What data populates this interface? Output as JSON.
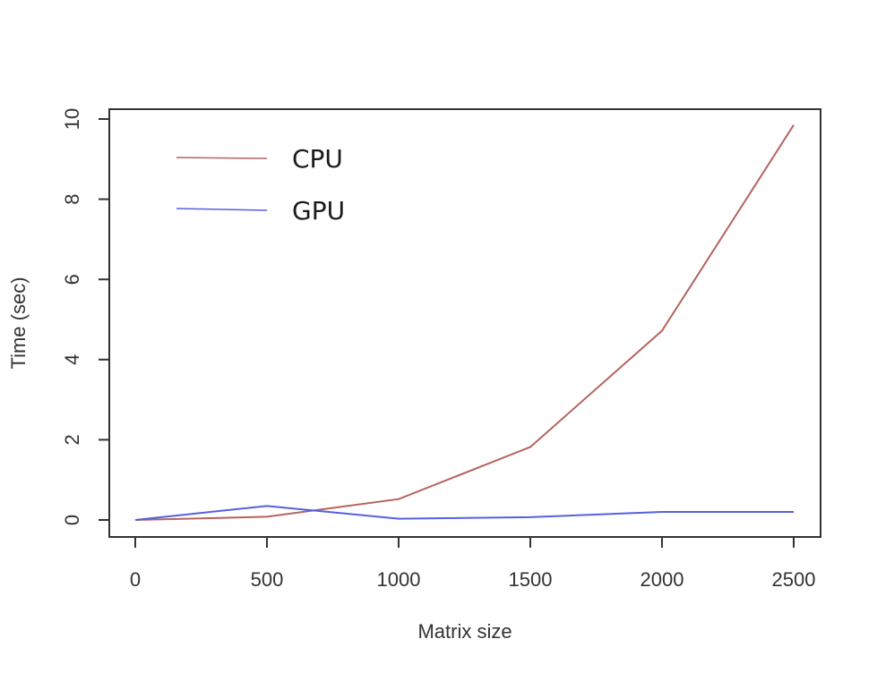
{
  "chart_data": {
    "type": "line",
    "title": "",
    "xlabel": "Matrix size",
    "ylabel": "Time (sec)",
    "xlim": [
      0,
      2500
    ],
    "ylim": [
      0,
      10
    ],
    "x_ticks": [
      "0",
      "500",
      "1000",
      "1500",
      "2000",
      "2500"
    ],
    "y_ticks": [
      "0",
      "2",
      "4",
      "6",
      "8",
      "10"
    ],
    "grid": false,
    "legend_position": "top-left",
    "x": [
      0,
      500,
      1000,
      1500,
      2000,
      2500
    ],
    "series": [
      {
        "name": "CPU",
        "color": "#b5645f",
        "values": [
          0.0,
          0.08,
          0.52,
          1.82,
          4.72,
          9.85
        ]
      },
      {
        "name": "GPU",
        "color": "#5560e0",
        "values": [
          0.0,
          0.35,
          0.03,
          0.07,
          0.2,
          0.2
        ]
      }
    ]
  }
}
